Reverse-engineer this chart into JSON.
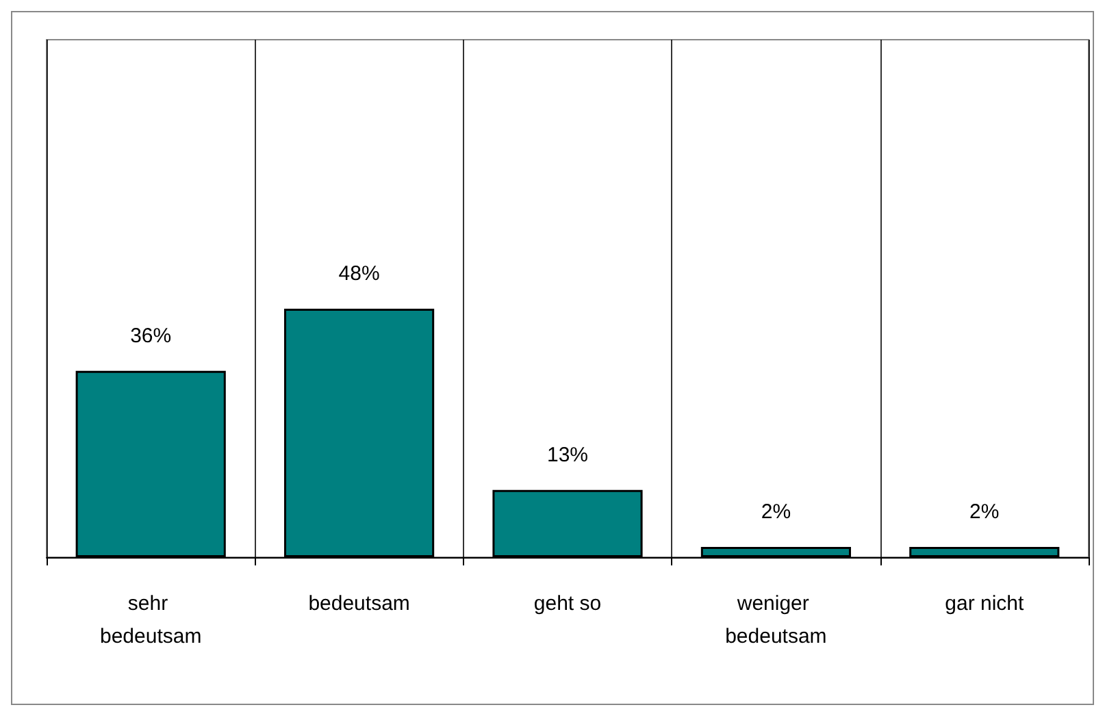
{
  "chart_data": {
    "type": "bar",
    "categories": [
      "sehr bedeutsam",
      "bedeutsam",
      "geht so",
      "weniger bedeutsam",
      "gar nicht"
    ],
    "values": [
      36,
      48,
      13,
      2,
      2
    ],
    "value_labels": [
      "36%",
      "48%",
      "13%",
      "2%",
      "2%"
    ],
    "color": "#008080",
    "ylim": [
      0,
      100
    ],
    "tick_labels": "x",
    "grid": "x"
  }
}
